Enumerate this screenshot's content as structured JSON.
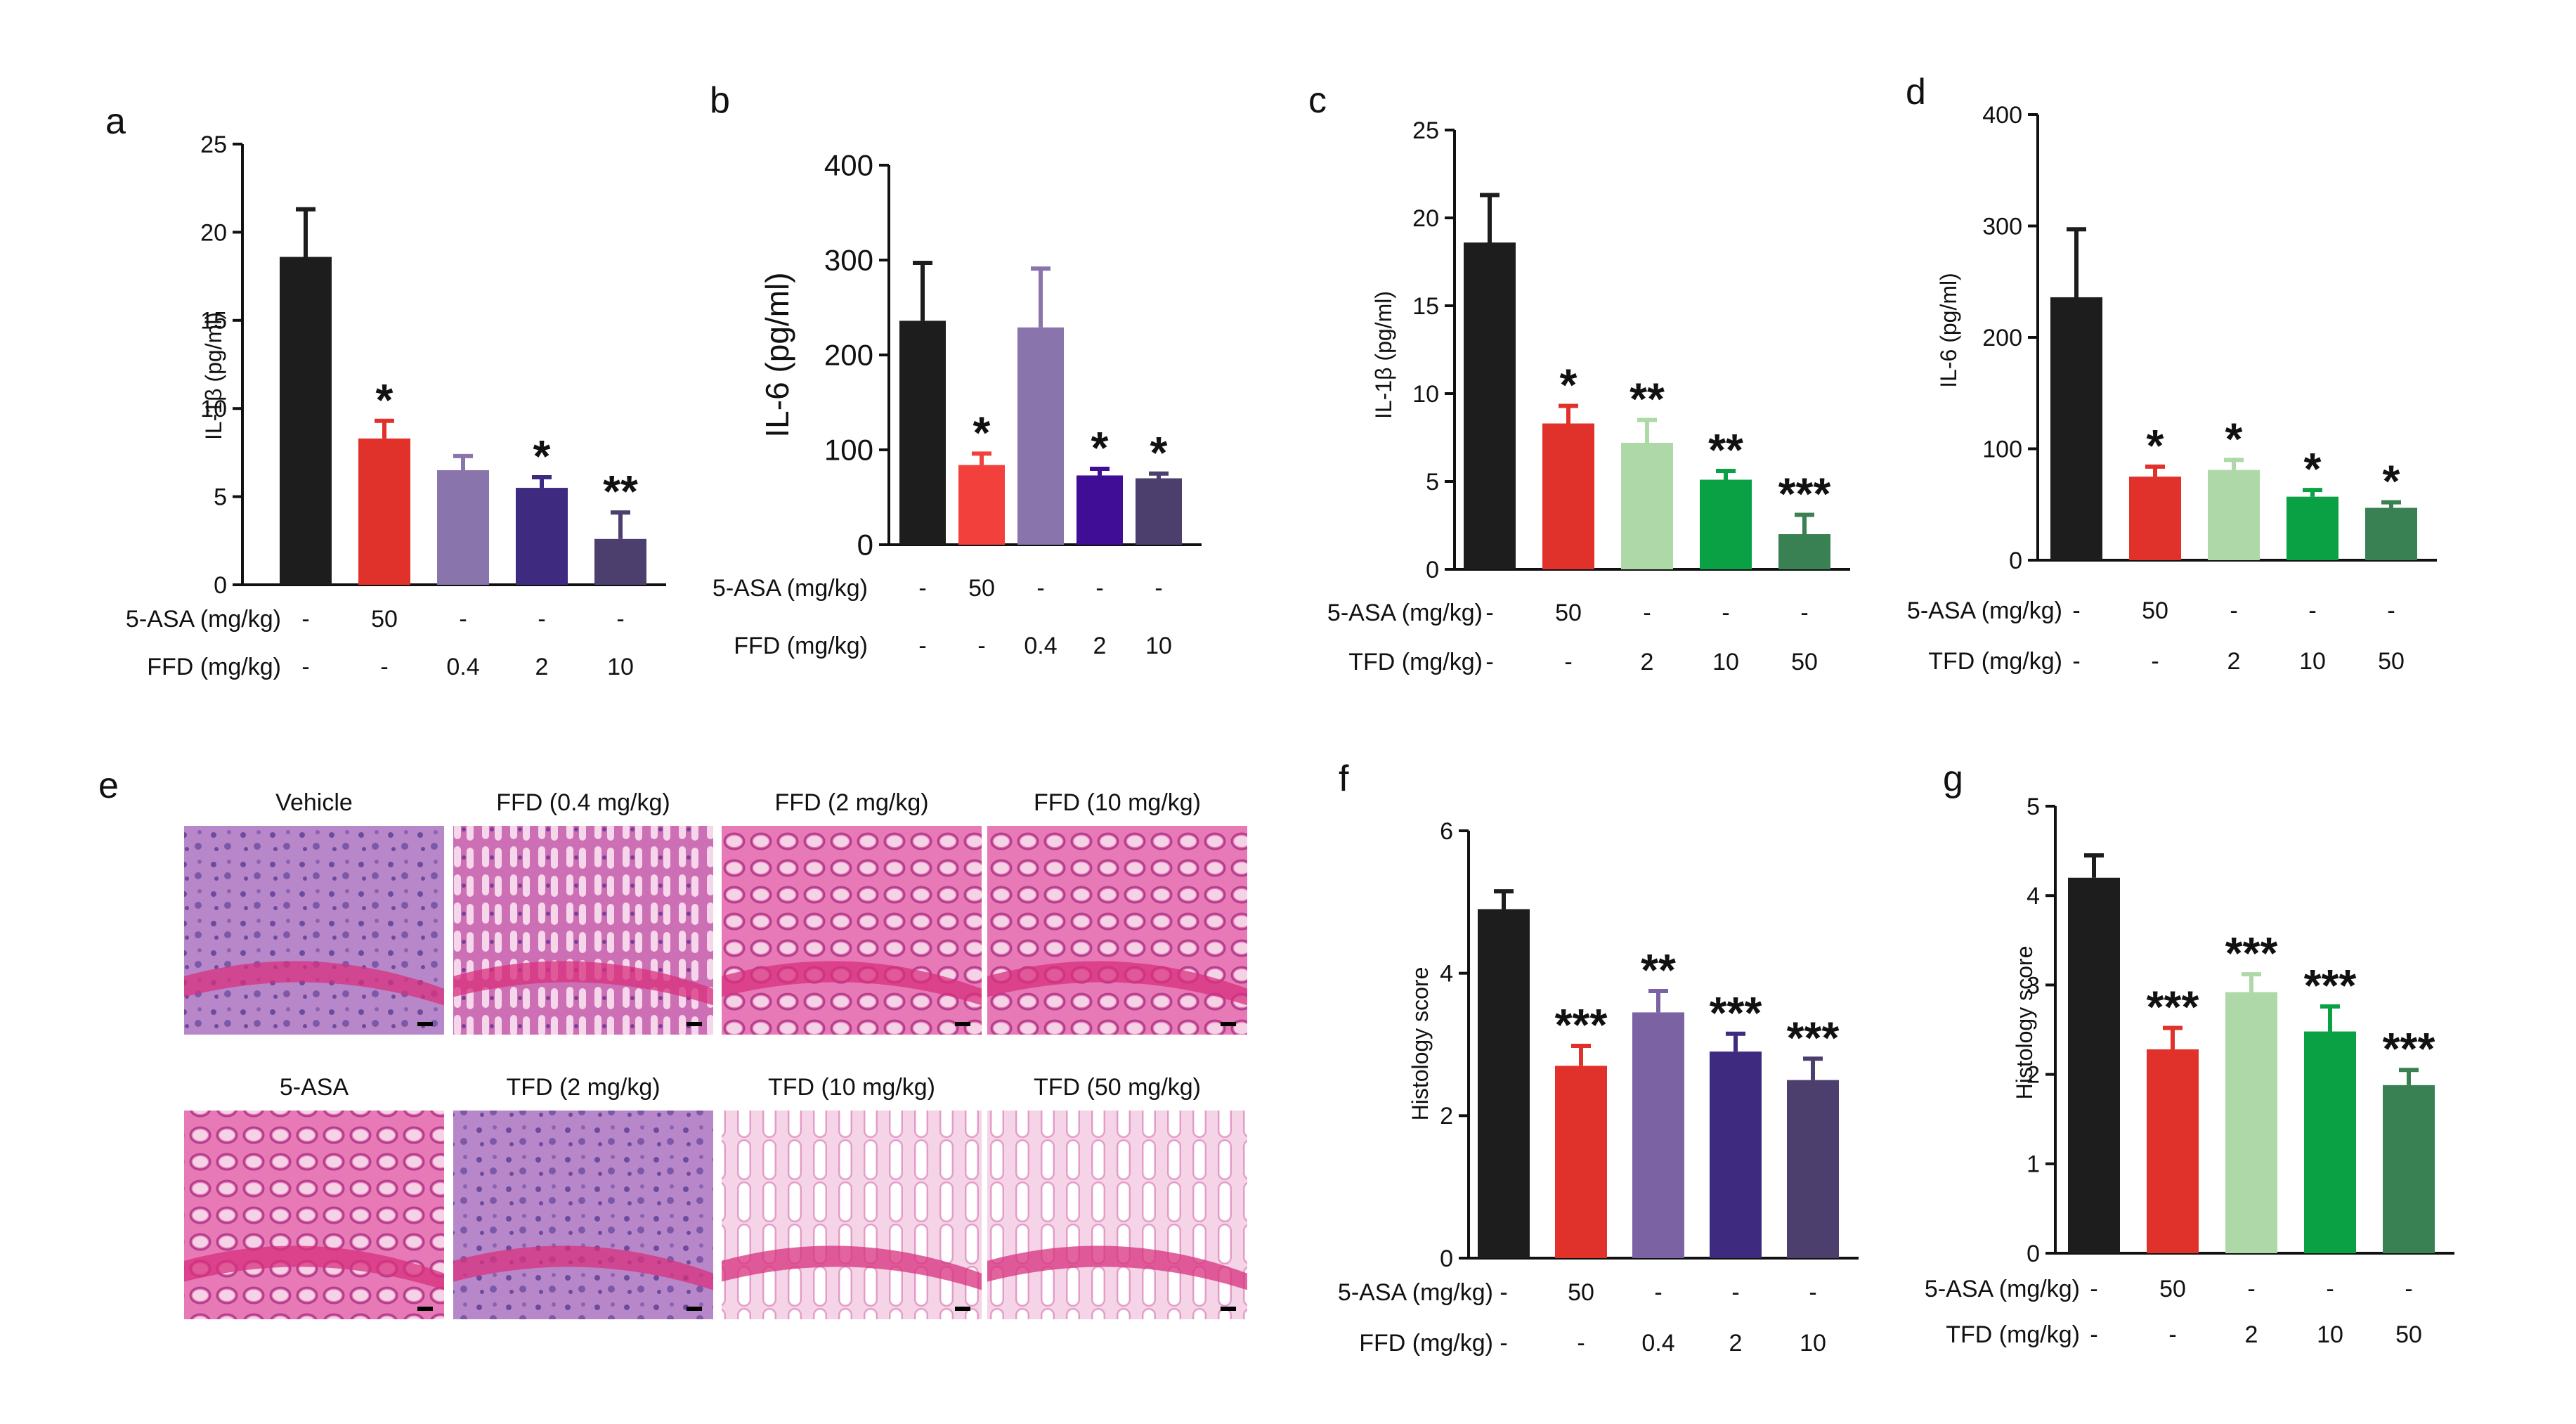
{
  "colors": {
    "black": "#1d1d1d",
    "red": "#e0312b",
    "lavender": "#8a74ac",
    "indigo": "#3e2a7e",
    "darkpurple": "#4c3e6d",
    "salmon": "#f2413c",
    "violet": "#3f0d96",
    "lightgreen": "#aed8a8",
    "green": "#0aa145",
    "darkgreen": "#398152",
    "mediumpurple": "#7a62a3",
    "tissue_pink": "#e06aa6",
    "tissue_purple": "#9c4aa7"
  },
  "chart_data": [
    {
      "panel": "a",
      "type": "bar",
      "ylabel": "IL-1β (pg/ml)",
      "ylim": [
        0,
        25
      ],
      "ticks": [
        0,
        5,
        10,
        15,
        20,
        25
      ],
      "values": [
        18.6,
        8.3,
        6.5,
        5.5,
        2.6
      ],
      "errors": [
        2.7,
        1.0,
        0.8,
        0.6,
        1.5
      ],
      "sig": [
        "",
        "*",
        "",
        "*",
        "**"
      ],
      "colors": [
        "#1d1d1d",
        "#e0312b",
        "#8a74ac",
        "#3e2a7e",
        "#4c3e6d"
      ],
      "conditions": [
        {
          "label": "5-ASA (mg/kg)",
          "values": [
            "-",
            "50",
            "-",
            "-",
            "-"
          ]
        },
        {
          "label": "FFD (mg/kg)",
          "values": [
            "-",
            "-",
            "0.4",
            "2",
            "10"
          ]
        }
      ]
    },
    {
      "panel": "b",
      "type": "bar",
      "ylabel": "IL-6 (pg/ml)",
      "ylim": [
        0,
        400
      ],
      "ticks": [
        0,
        100,
        200,
        300,
        400
      ],
      "values": [
        236,
        84,
        229,
        73,
        70
      ],
      "errors": [
        61,
        12,
        62,
        7,
        5
      ],
      "sig": [
        "",
        "*",
        "",
        "*",
        "*"
      ],
      "colors": [
        "#1d1d1d",
        "#f2413c",
        "#8a74ac",
        "#3f0d96",
        "#4c3e6d"
      ],
      "conditions": [
        {
          "label": "5-ASA (mg/kg)",
          "values": [
            "-",
            "50",
            "-",
            "-",
            "-"
          ]
        },
        {
          "label": "FFD (mg/kg)",
          "values": [
            "-",
            "-",
            "0.4",
            "2",
            "10"
          ]
        }
      ]
    },
    {
      "panel": "c",
      "type": "bar",
      "ylabel": "IL-1β (pg/ml)",
      "ylim": [
        0,
        25
      ],
      "ticks": [
        0,
        5,
        10,
        15,
        20,
        25
      ],
      "values": [
        18.6,
        8.3,
        7.2,
        5.1,
        2.0
      ],
      "errors": [
        2.7,
        1.0,
        1.3,
        0.5,
        1.1
      ],
      "sig": [
        "",
        "*",
        "**",
        "**",
        "***"
      ],
      "colors": [
        "#1d1d1d",
        "#e0312b",
        "#aed8a8",
        "#0aa145",
        "#398152"
      ],
      "conditions": [
        {
          "label": "5-ASA (mg/kg)",
          "values": [
            "-",
            "50",
            "-",
            "-",
            "-"
          ]
        },
        {
          "label": "TFD (mg/kg)",
          "values": [
            "-",
            "-",
            "2",
            "10",
            "50"
          ]
        }
      ]
    },
    {
      "panel": "d",
      "type": "bar",
      "ylabel": "IL-6 (pg/ml)",
      "ylim": [
        0,
        400
      ],
      "ticks": [
        0,
        100,
        200,
        300,
        400
      ],
      "values": [
        236,
        75,
        81,
        57,
        47
      ],
      "errors": [
        61,
        9,
        9,
        6,
        5
      ],
      "sig": [
        "",
        "*",
        "*",
        "*",
        "*"
      ],
      "colors": [
        "#1d1d1d",
        "#e0312b",
        "#aed8a8",
        "#0aa145",
        "#398152"
      ],
      "conditions": [
        {
          "label": "5-ASA (mg/kg)",
          "values": [
            "-",
            "50",
            "-",
            "-",
            "-"
          ]
        },
        {
          "label": "TFD (mg/kg)",
          "values": [
            "-",
            "-",
            "2",
            "10",
            "50"
          ]
        }
      ]
    },
    {
      "panel": "f",
      "type": "bar",
      "ylabel": "Histology score",
      "ylim": [
        0,
        6
      ],
      "ticks": [
        0,
        2,
        4,
        6
      ],
      "values": [
        4.9,
        2.7,
        3.45,
        2.9,
        2.5
      ],
      "errors": [
        0.25,
        0.28,
        0.3,
        0.25,
        0.3
      ],
      "sig": [
        "",
        "***",
        "**",
        "***",
        "***"
      ],
      "colors": [
        "#1d1d1d",
        "#e0312b",
        "#7a62a3",
        "#3e2a7e",
        "#4c3e6d"
      ],
      "conditions": [
        {
          "label": "5-ASA (mg/kg)",
          "values": [
            "-",
            "50",
            "-",
            "-",
            "-"
          ]
        },
        {
          "label": "FFD (mg/kg)",
          "values": [
            "-",
            "-",
            "0.4",
            "2",
            "10"
          ]
        }
      ]
    },
    {
      "panel": "g",
      "type": "bar",
      "ylabel": "Histology score",
      "ylim": [
        0,
        5
      ],
      "ticks": [
        0,
        1,
        2,
        3,
        4,
        5
      ],
      "values": [
        4.2,
        2.28,
        2.92,
        2.48,
        1.88
      ],
      "errors": [
        0.25,
        0.24,
        0.2,
        0.28,
        0.17
      ],
      "sig": [
        "",
        "***",
        "***",
        "***",
        "***"
      ],
      "colors": [
        "#1d1d1d",
        "#e0312b",
        "#aed8a8",
        "#0aa145",
        "#398152"
      ],
      "conditions": [
        {
          "label": "5-ASA (mg/kg)",
          "values": [
            "-",
            "50",
            "-",
            "-",
            "-"
          ]
        },
        {
          "label": "TFD (mg/kg)",
          "values": [
            "-",
            "-",
            "2",
            "10",
            "50"
          ]
        }
      ]
    }
  ],
  "histology": {
    "panel": "e",
    "images": [
      {
        "label": "Vehicle",
        "tone": "purple"
      },
      {
        "label": "FFD (0.4 mg/kg)",
        "tone": "mixed"
      },
      {
        "label": "FFD (2 mg/kg)",
        "tone": "pink"
      },
      {
        "label": "FFD (10 mg/kg)",
        "tone": "pink"
      },
      {
        "label": "5-ASA",
        "tone": "pink"
      },
      {
        "label": "TFD (2 mg/kg)",
        "tone": "purple"
      },
      {
        "label": "TFD (10 mg/kg)",
        "tone": "light"
      },
      {
        "label": "TFD  (50 mg/kg)",
        "tone": "light"
      }
    ]
  }
}
